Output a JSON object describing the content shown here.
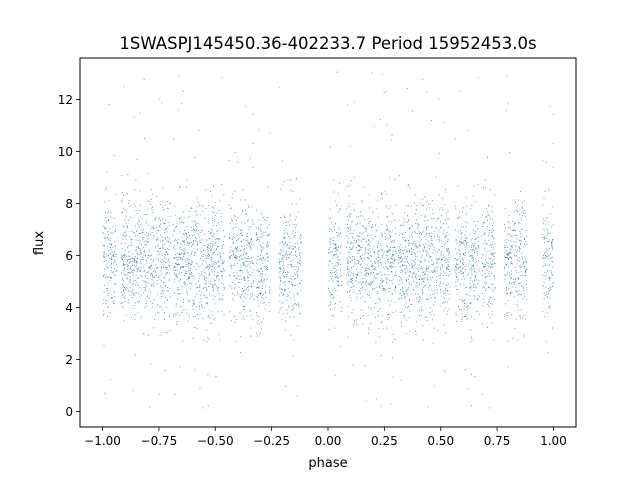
{
  "chart_data": {
    "type": "scatter",
    "title": "1SWASPJ145450.36-402233.7 Period 15952453.0s",
    "xlabel": "phase",
    "ylabel": "flux",
    "xlim": [
      -1.1,
      1.1
    ],
    "ylim": [
      -0.6,
      13.6
    ],
    "x_ticks": [
      -1.0,
      -0.75,
      -0.5,
      -0.25,
      0.0,
      0.25,
      0.5,
      0.75,
      1.0
    ],
    "x_tick_labels": [
      "−1.00",
      "−0.75",
      "−0.50",
      "−0.25",
      "0.00",
      "0.25",
      "0.50",
      "0.75",
      "1.00"
    ],
    "y_ticks": [
      0,
      2,
      4,
      6,
      8,
      10,
      12
    ],
    "y_tick_labels": [
      "0",
      "2",
      "4",
      "6",
      "8",
      "10",
      "12"
    ],
    "grid": false,
    "legend": "none",
    "marker_color": "#1f77b4",
    "series": [
      {
        "phase_coverage": [
          [
            -1.0,
            -0.94
          ],
          [
            -0.92,
            -0.7
          ],
          [
            -0.69,
            -0.46
          ],
          [
            -0.44,
            -0.33
          ],
          [
            -0.32,
            -0.26
          ],
          [
            -0.22,
            -0.12
          ],
          [
            0.0,
            0.06
          ],
          [
            0.08,
            0.3
          ],
          [
            0.31,
            0.54
          ],
          [
            0.56,
            0.67
          ],
          [
            0.68,
            0.74
          ],
          [
            0.78,
            0.88
          ],
          [
            0.95,
            1.0
          ]
        ],
        "flux_center": 5.8,
        "flux_core_range": [
          3.5,
          9.0
        ],
        "flux_outlier_range": [
          0.0,
          13.2
        ]
      }
    ]
  }
}
